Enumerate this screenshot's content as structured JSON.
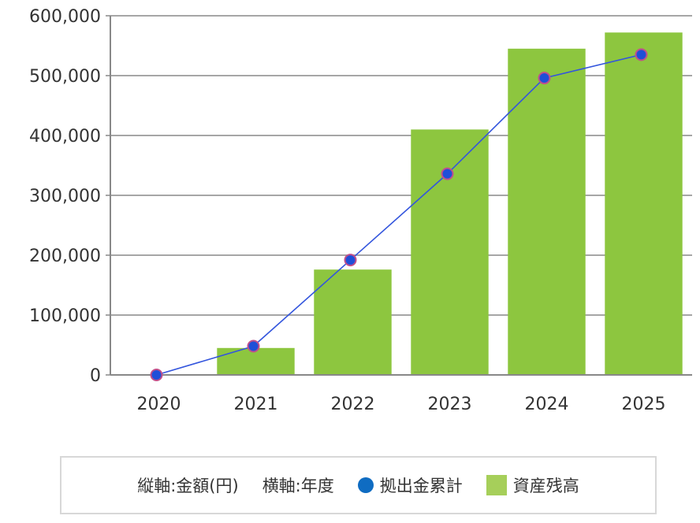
{
  "chart_data": {
    "type": "bar",
    "categories": [
      "2020",
      "2021",
      "2022",
      "2023",
      "2024",
      "2025"
    ],
    "series": [
      {
        "name": "資産残高",
        "kind": "bar",
        "color": "#8dc63f",
        "values": [
          0,
          45000,
          176000,
          410000,
          545000,
          572000
        ]
      },
      {
        "name": "拠出金累計",
        "kind": "line",
        "color": "#1f4fd8",
        "line_color": "#3355dd",
        "values": [
          0,
          48000,
          192000,
          336000,
          496000,
          535000
        ]
      }
    ],
    "ylim": [
      0,
      600000
    ],
    "yticks": [
      0,
      100000,
      200000,
      300000,
      400000,
      500000,
      600000
    ],
    "ytick_labels": [
      "0",
      "100,000",
      "200,000",
      "300,000",
      "400,000",
      "500,000",
      "600,000"
    ],
    "grid": true
  },
  "legend": {
    "y_axis_note": "縦軸:金額(円)",
    "x_axis_note": "横軸:年度",
    "line_label": "拠出金累計",
    "line_color": "#0f6cc2",
    "bar_label": "資産残高",
    "bar_color": "#a6cf5a"
  }
}
